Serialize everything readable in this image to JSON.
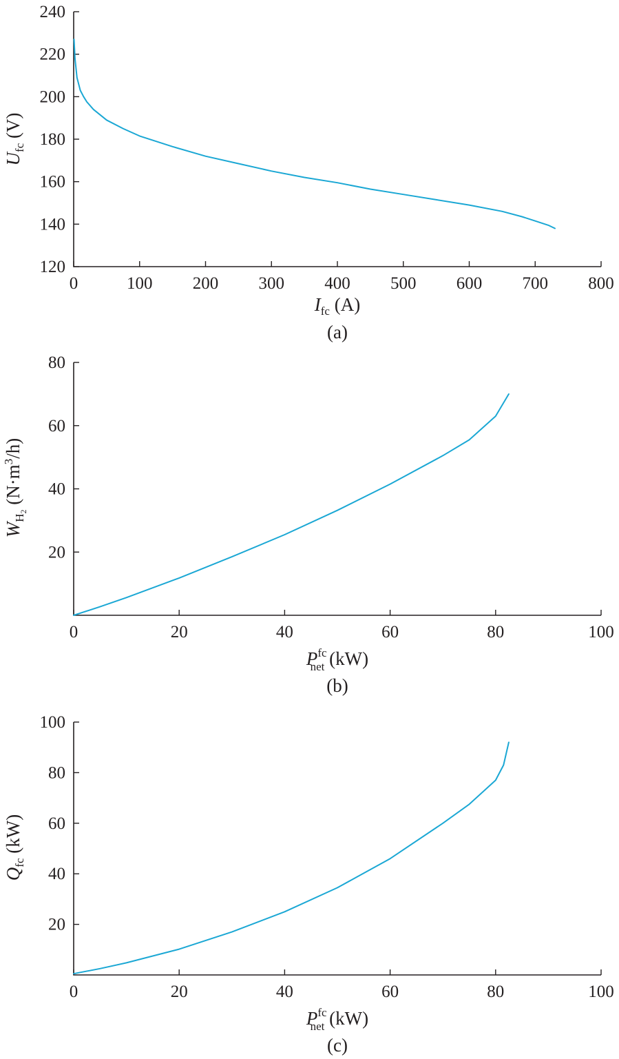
{
  "chart_data": [
    {
      "type": "line",
      "panel_label": "(a)",
      "xlabel": {
        "symbol": "I",
        "sub": "fc",
        "sup": "",
        "unit": " (A)"
      },
      "ylabel": {
        "symbol": "U",
        "sub": "fc",
        "sup": "",
        "unit": " (V)"
      },
      "xlim": [
        0,
        800
      ],
      "ylim": [
        120,
        240
      ],
      "xticks": [
        "0",
        "100",
        "200",
        "300",
        "400",
        "500",
        "600",
        "700",
        "800"
      ],
      "yticks": [
        "120",
        "140",
        "160",
        "180",
        "200",
        "220",
        "240"
      ],
      "grid": false,
      "color": "#1aa7d4",
      "series": [
        {
          "x": [
            0.5,
            2,
            5,
            10,
            15,
            20,
            30,
            50,
            75,
            100,
            150,
            200,
            250,
            300,
            350,
            400,
            450,
            500,
            550,
            600,
            650,
            680,
            700,
            720,
            730
          ],
          "y": [
            227,
            218,
            209,
            203,
            200,
            197.5,
            194,
            189,
            185,
            181.5,
            176.5,
            172,
            168.5,
            165,
            162,
            159.5,
            156.5,
            154,
            151.5,
            149,
            146,
            143.5,
            141.5,
            139.5,
            138
          ]
        }
      ]
    },
    {
      "type": "line",
      "panel_label": "(b)",
      "xlabel": {
        "symbol": "P",
        "sub": "net",
        "sup": "fc",
        "unit": " (kW)"
      },
      "ylabel": {
        "symbol": "W",
        "sub": "H",
        "sub2": "2",
        "unit": " (N·m",
        "unit_sup": "3",
        "unit_tail": "/h)"
      },
      "xlim": [
        0,
        100
      ],
      "ylim": [
        0,
        80
      ],
      "xticks": [
        "0",
        "20",
        "40",
        "60",
        "80",
        "100"
      ],
      "yticks": [
        "20",
        "40",
        "60",
        "80"
      ],
      "grid": false,
      "color": "#1aa7d4",
      "series": [
        {
          "x": [
            0,
            5,
            10,
            20,
            30,
            40,
            50,
            60,
            70,
            75,
            80,
            82.5
          ],
          "y": [
            0,
            2.7,
            5.6,
            11.8,
            18.5,
            25.5,
            33.2,
            41.5,
            50.5,
            55.5,
            63,
            70
          ]
        }
      ]
    },
    {
      "type": "line",
      "panel_label": "(c)",
      "xlabel": {
        "symbol": "P",
        "sub": "net",
        "sup": "fc",
        "unit": " (kW)"
      },
      "ylabel": {
        "symbol": "Q",
        "sub": "fc",
        "sup": "",
        "unit": " (kW)"
      },
      "xlim": [
        0,
        100
      ],
      "ylim": [
        0,
        100
      ],
      "xticks": [
        "0",
        "20",
        "40",
        "60",
        "80",
        "100"
      ],
      "yticks": [
        "20",
        "40",
        "60",
        "80",
        "100"
      ],
      "grid": false,
      "color": "#1aa7d4",
      "series": [
        {
          "x": [
            0,
            5,
            10,
            20,
            30,
            40,
            50,
            60,
            70,
            75,
            80,
            81.5,
            82.5
          ],
          "y": [
            0.5,
            2.5,
            4.8,
            10.2,
            17,
            25,
            34.5,
            46,
            60,
            67.5,
            77,
            83,
            92
          ]
        }
      ]
    }
  ]
}
